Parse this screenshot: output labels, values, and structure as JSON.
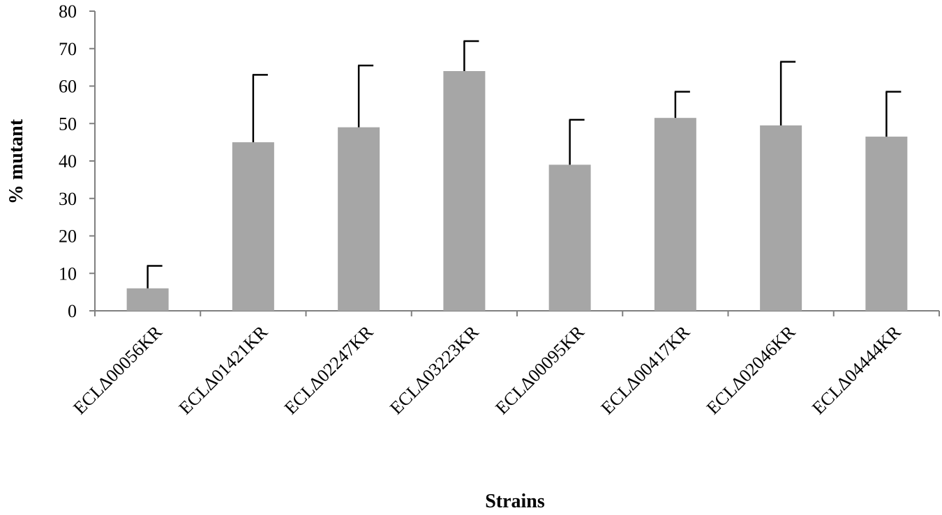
{
  "chart_data": {
    "type": "bar",
    "title": "",
    "xlabel": "Strains",
    "ylabel": "% mutant",
    "ylim": [
      0,
      80
    ],
    "yticks": [
      0,
      10,
      20,
      30,
      40,
      50,
      60,
      70,
      80
    ],
    "grid": false,
    "categories": [
      "ECLΔ00056KR",
      "ECLΔ01421KR",
      "ECLΔ02247KR",
      "ECLΔ03223KR",
      "ECLΔ00095KR",
      "ECLΔ00417KR",
      "ECLΔ02046KR",
      "ECLΔ04444KR"
    ],
    "values": [
      6,
      45,
      49,
      64,
      39,
      51.5,
      49.5,
      46.5
    ],
    "error": [
      6,
      18,
      16.5,
      8,
      12,
      7,
      17,
      12
    ],
    "bar_color": "#a6a6a6",
    "axis_color": "#7f7f7f"
  }
}
